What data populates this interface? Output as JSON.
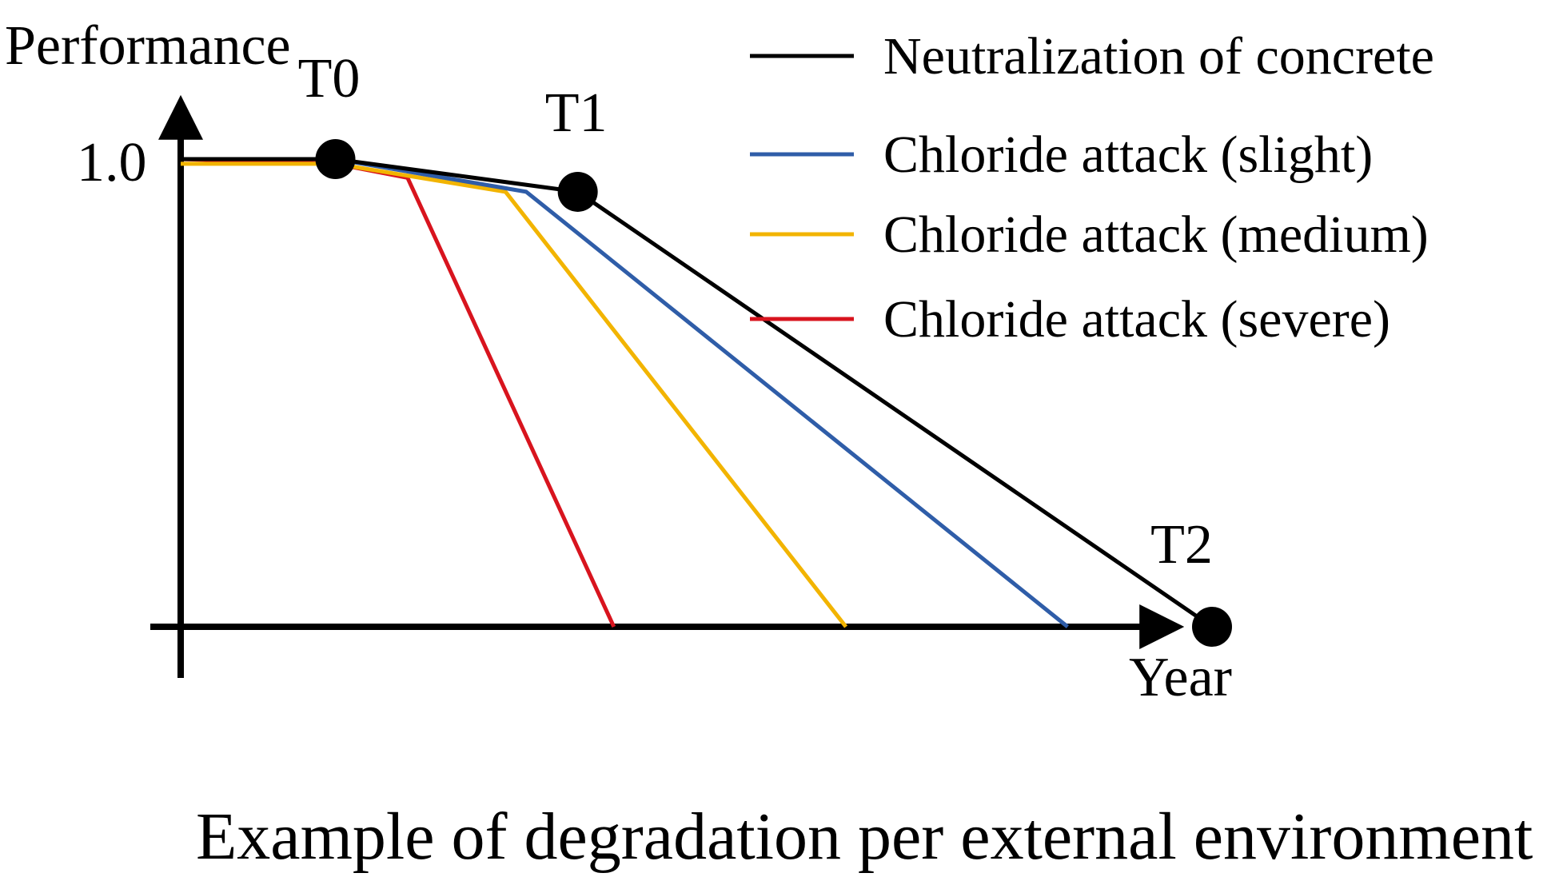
{
  "chart_data": {
    "type": "line",
    "title": "",
    "caption": "Example of degradation per external environment",
    "ylabel": "Performance",
    "xlabel": "Year",
    "y_tick_labels": [
      "1.0"
    ],
    "ylim": [
      0,
      1.05
    ],
    "xlim": [
      0,
      10.3
    ],
    "grid": false,
    "legend_position": "top-right",
    "series": [
      {
        "name": "Neutralization of concrete",
        "color": "#000000",
        "x": [
          0,
          1.5,
          3.85,
          10.0
        ],
        "y": [
          1.0,
          1.0,
          0.93,
          0.0
        ]
      },
      {
        "name": "Chloride attack (slight)",
        "color": "#2f5da8",
        "x": [
          0,
          1.5,
          3.35,
          8.6
        ],
        "y": [
          1.0,
          1.0,
          0.93,
          0.0
        ]
      },
      {
        "name": "Chloride attack (medium)",
        "color": "#f2b400",
        "x": [
          0,
          1.5,
          3.15,
          6.45
        ],
        "y": [
          0.99,
          0.99,
          0.93,
          0.0
        ]
      },
      {
        "name": "Chloride attack (severe)",
        "color": "#d8141e",
        "x": [
          0,
          1.5,
          2.2,
          4.2
        ],
        "y": [
          1.0,
          0.99,
          0.96,
          0.0
        ]
      }
    ],
    "markers": [
      {
        "label": "T0",
        "x": 1.5,
        "y": 1.0
      },
      {
        "label": "T1",
        "x": 3.85,
        "y": 0.93
      },
      {
        "label": "T2",
        "x": 10.0,
        "y": 0.0
      }
    ]
  }
}
